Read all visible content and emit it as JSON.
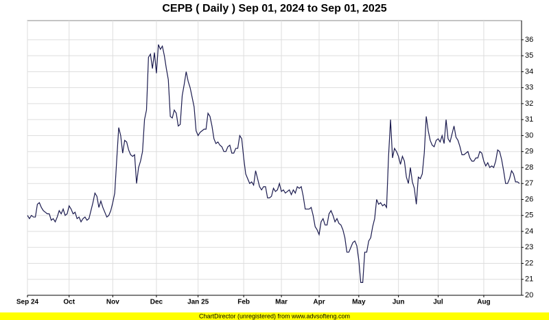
{
  "chart_data": {
    "type": "line",
    "title": "CEPB ( Daily ) Sep 01, 2024 to Sep 01, 2025",
    "footer": "ChartDirector (unregistered) from www.advsofteng.com",
    "color": "#1a1a4e",
    "grid": true,
    "ylim": [
      20,
      37.2
    ],
    "yticks": [
      20,
      21,
      22,
      23,
      24,
      25,
      26,
      27,
      28,
      29,
      30,
      31,
      32,
      33,
      34,
      35,
      36
    ],
    "categories": [
      "Sep 24",
      null,
      null,
      null,
      null,
      null,
      null,
      null,
      null,
      null,
      null,
      null,
      null,
      null,
      null,
      null,
      null,
      null,
      null,
      null,
      null,
      "Oct",
      null,
      null,
      null,
      null,
      null,
      null,
      null,
      null,
      null,
      null,
      null,
      null,
      null,
      null,
      null,
      null,
      null,
      null,
      null,
      null,
      null,
      "Nov",
      null,
      null,
      null,
      null,
      null,
      null,
      null,
      null,
      null,
      null,
      null,
      null,
      null,
      null,
      null,
      null,
      null,
      null,
      null,
      null,
      null,
      "Dec",
      null,
      null,
      null,
      null,
      null,
      null,
      null,
      null,
      null,
      null,
      null,
      null,
      null,
      null,
      null,
      null,
      null,
      null,
      null,
      null,
      "Jan 25",
      null,
      null,
      null,
      null,
      null,
      null,
      null,
      null,
      null,
      null,
      null,
      null,
      null,
      null,
      null,
      null,
      null,
      null,
      null,
      null,
      null,
      null,
      "Feb",
      null,
      null,
      null,
      null,
      null,
      null,
      null,
      null,
      null,
      null,
      null,
      null,
      null,
      null,
      null,
      null,
      null,
      null,
      "Mar",
      null,
      null,
      null,
      null,
      null,
      null,
      null,
      null,
      null,
      null,
      null,
      null,
      null,
      null,
      null,
      null,
      null,
      null,
      "Apr",
      null,
      null,
      null,
      null,
      null,
      null,
      null,
      null,
      null,
      null,
      null,
      null,
      null,
      null,
      null,
      null,
      null,
      null,
      null,
      "May",
      null,
      null,
      null,
      null,
      null,
      null,
      null,
      null,
      null,
      null,
      null,
      null,
      null,
      null,
      null,
      null,
      null,
      null,
      null,
      "Jun",
      null,
      null,
      null,
      null,
      null,
      null,
      null,
      null,
      null,
      null,
      null,
      null,
      null,
      null,
      null,
      null,
      null,
      null,
      null,
      "Jul",
      null,
      null,
      null,
      null,
      null,
      null,
      null,
      null,
      null,
      null,
      null,
      null,
      null,
      null,
      null,
      null,
      null,
      null,
      null,
      null,
      null,
      null,
      "Aug",
      null,
      null,
      null,
      null,
      null,
      null,
      null,
      null,
      null,
      null,
      null,
      null,
      null,
      null,
      null,
      null,
      null,
      null
    ],
    "values": [
      25.0,
      24.8,
      25.0,
      24.9,
      24.9,
      25.7,
      25.8,
      25.5,
      25.3,
      25.2,
      25.1,
      25.1,
      24.7,
      24.8,
      24.6,
      24.9,
      25.3,
      25.1,
      25.4,
      25.0,
      25.1,
      25.6,
      25.4,
      25.1,
      25.2,
      24.8,
      24.9,
      24.6,
      24.8,
      24.9,
      24.7,
      24.8,
      25.3,
      25.8,
      26.4,
      26.2,
      25.5,
      25.9,
      25.5,
      25.2,
      24.9,
      25.0,
      25.3,
      25.8,
      26.4,
      28.5,
      30.5,
      30.0,
      28.9,
      29.7,
      29.6,
      29.1,
      28.8,
      28.7,
      28.8,
      27.0,
      28.0,
      28.4,
      29.0,
      31.0,
      31.6,
      34.9,
      35.1,
      34.2,
      35.2,
      33.9,
      35.7,
      35.4,
      35.6,
      35.0,
      34.2,
      33.5,
      31.2,
      31.1,
      31.6,
      31.4,
      30.6,
      30.7,
      32.5,
      33.2,
      34.0,
      33.4,
      33.0,
      32.4,
      31.8,
      30.3,
      30.0,
      30.2,
      30.3,
      30.4,
      30.4,
      31.4,
      31.2,
      30.6,
      29.8,
      29.5,
      29.6,
      29.4,
      29.3,
      29.0,
      29.0,
      29.3,
      29.4,
      28.9,
      28.9,
      29.2,
      29.2,
      30.0,
      29.8,
      28.6,
      27.6,
      27.3,
      27.0,
      27.1,
      26.9,
      27.8,
      27.3,
      26.8,
      26.6,
      26.8,
      26.8,
      26.1,
      26.1,
      26.2,
      26.7,
      26.5,
      26.6,
      27.0,
      26.5,
      26.6,
      26.4,
      26.5,
      26.6,
      26.3,
      26.6,
      26.4,
      26.8,
      26.7,
      26.8,
      26.2,
      25.4,
      25.4,
      25.4,
      25.5,
      25.0,
      24.3,
      24.1,
      23.8,
      24.6,
      24.8,
      24.4,
      24.4,
      25.1,
      25.3,
      25.0,
      24.6,
      24.8,
      24.5,
      24.4,
      24.1,
      23.6,
      22.7,
      22.7,
      23.0,
      23.3,
      23.4,
      23.1,
      22.2,
      20.8,
      20.8,
      22.7,
      22.7,
      23.4,
      23.6,
      24.3,
      24.8,
      26.0,
      25.7,
      25.8,
      25.6,
      25.7,
      25.5,
      28.7,
      31.0,
      28.6,
      29.2,
      29.0,
      28.7,
      28.2,
      28.7,
      28.4,
      27.4,
      27.0,
      28.0,
      27.1,
      26.7,
      25.7,
      27.4,
      27.3,
      27.6,
      28.9,
      31.2,
      30.3,
      29.7,
      29.4,
      29.3,
      29.7,
      29.8,
      29.6,
      30.0,
      29.5,
      31.0,
      29.8,
      29.6,
      30.1,
      30.6,
      29.9,
      29.7,
      29.3,
      28.8,
      28.8,
      28.9,
      29.0,
      28.6,
      28.4,
      28.4,
      28.6,
      28.6,
      29.0,
      28.9,
      28.4,
      28.1,
      28.3,
      28.0,
      28.1,
      28.0,
      28.4,
      29.1,
      29.0,
      28.5,
      27.8,
      27.0,
      27.0,
      27.3,
      27.8,
      27.6,
      27.1,
      27.1,
      27.0
    ]
  }
}
